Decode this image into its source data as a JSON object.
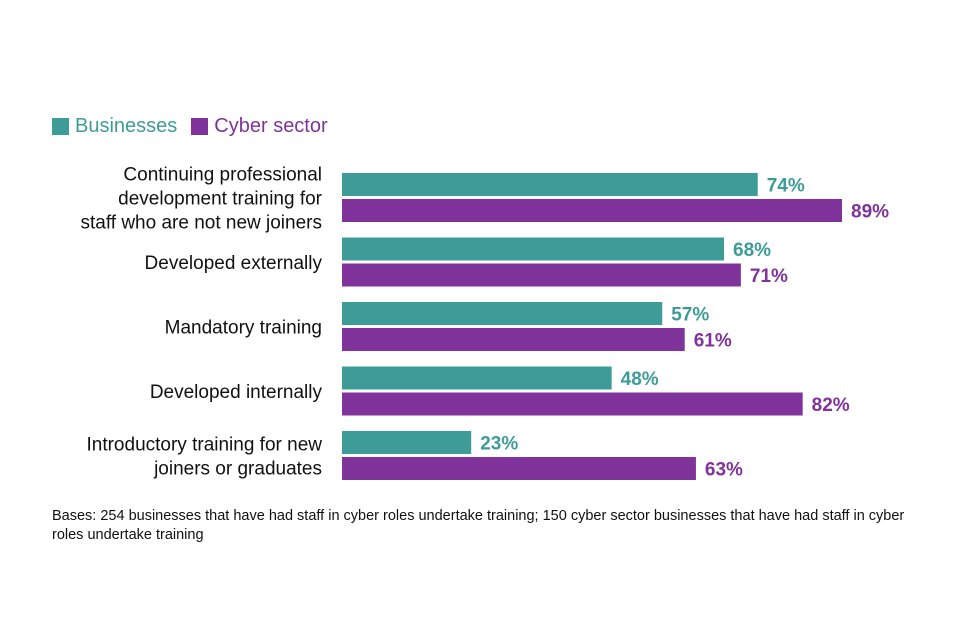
{
  "chart_data": {
    "type": "bar",
    "orientation": "horizontal",
    "categories": [
      [
        "Continuing professional",
        "development training for",
        "staff who are not new joiners"
      ],
      [
        "Developed externally"
      ],
      [
        "Mandatory training"
      ],
      [
        "Developed internally"
      ],
      [
        "Introductory training for new",
        "joiners or graduates"
      ]
    ],
    "series": [
      {
        "name": "Businesses",
        "color": "#3d9b98",
        "values": [
          74,
          68,
          57,
          48,
          23
        ]
      },
      {
        "name": "Cyber sector",
        "color": "#80339b",
        "values": [
          89,
          71,
          61,
          82,
          63
        ]
      }
    ],
    "value_suffix": "%",
    "xlim": [
      0,
      100
    ],
    "legend_position": "top-left",
    "grid": false
  },
  "footnote": "Bases: 254 businesses that have had staff in cyber roles undertake training; 150 cyber sector businesses that have had staff in cyber roles undertake training"
}
